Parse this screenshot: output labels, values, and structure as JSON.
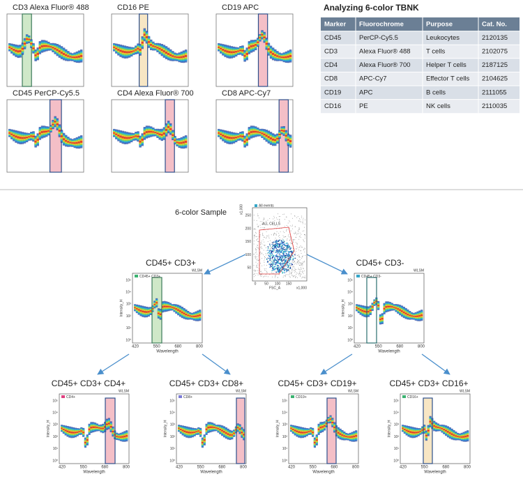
{
  "top_panels": [
    {
      "title": "CD3 Alexa Fluor® 488"
    },
    {
      "title": "CD16 PE"
    },
    {
      "title": "CD19 APC"
    },
    {
      "title": "CD45 PerCP-Cy5.5"
    },
    {
      "title": "CD4 Alexa Fluor® 700"
    },
    {
      "title": "CD8 APC-Cy7"
    }
  ],
  "table": {
    "title": "Analyzing 6-color TBNK",
    "header": [
      "Marker",
      "Fluorochrome",
      "Purpose",
      "Cat. No."
    ],
    "rows": [
      [
        "CD45",
        "PerCP-Cy5.5",
        "Leukocytes",
        "2120135"
      ],
      [
        "CD3",
        "Alexa Fluor® 488",
        "T cells",
        "2102075"
      ],
      [
        "CD4",
        "Alexa Fluor® 700",
        "Helper T cells",
        "2187125"
      ],
      [
        "CD8",
        "APC-Cy7",
        "Effector T cells",
        "2104625"
      ],
      [
        "CD19",
        "APC",
        "B cells",
        "2111055"
      ],
      [
        "CD16",
        "PE",
        "NK cells",
        "2110035"
      ]
    ]
  },
  "tree": {
    "root": {
      "label": "6-color Sample",
      "legend": "All events",
      "gate": "ALL CELLS",
      "xlabel": "FSC_A",
      "yunit": "x1,000",
      "xunit": "x1,000",
      "xticks": [
        "0",
        "50",
        "100",
        "150"
      ],
      "yticks": [
        "50",
        "100",
        "150",
        "200",
        "250"
      ]
    },
    "nodes": [
      {
        "label": "CD45+ CD3+",
        "legend": "CD45+ CD3+"
      },
      {
        "label": "CD45+ CD3-",
        "legend": "CD45+ CD3-"
      },
      {
        "label": "CD45+ CD3+ CD4+",
        "legend": "CD4+"
      },
      {
        "label": "CD45+ CD3+ CD8+",
        "legend": "CD8+"
      },
      {
        "label": "CD45+ CD3+ CD19+",
        "legend": "CD19+"
      },
      {
        "label": "CD45+ CD3+ CD16+",
        "legend": "CD16+"
      }
    ],
    "axis": {
      "tag": "WLSM",
      "xlabel": "Wavelength",
      "ylabel": "Intensity_H",
      "xticks": [
        "420",
        "550",
        "680",
        "800"
      ],
      "yticks": [
        "10⁵",
        "10⁴",
        "10³",
        "10²",
        "10¹",
        "10⁰"
      ]
    }
  }
}
